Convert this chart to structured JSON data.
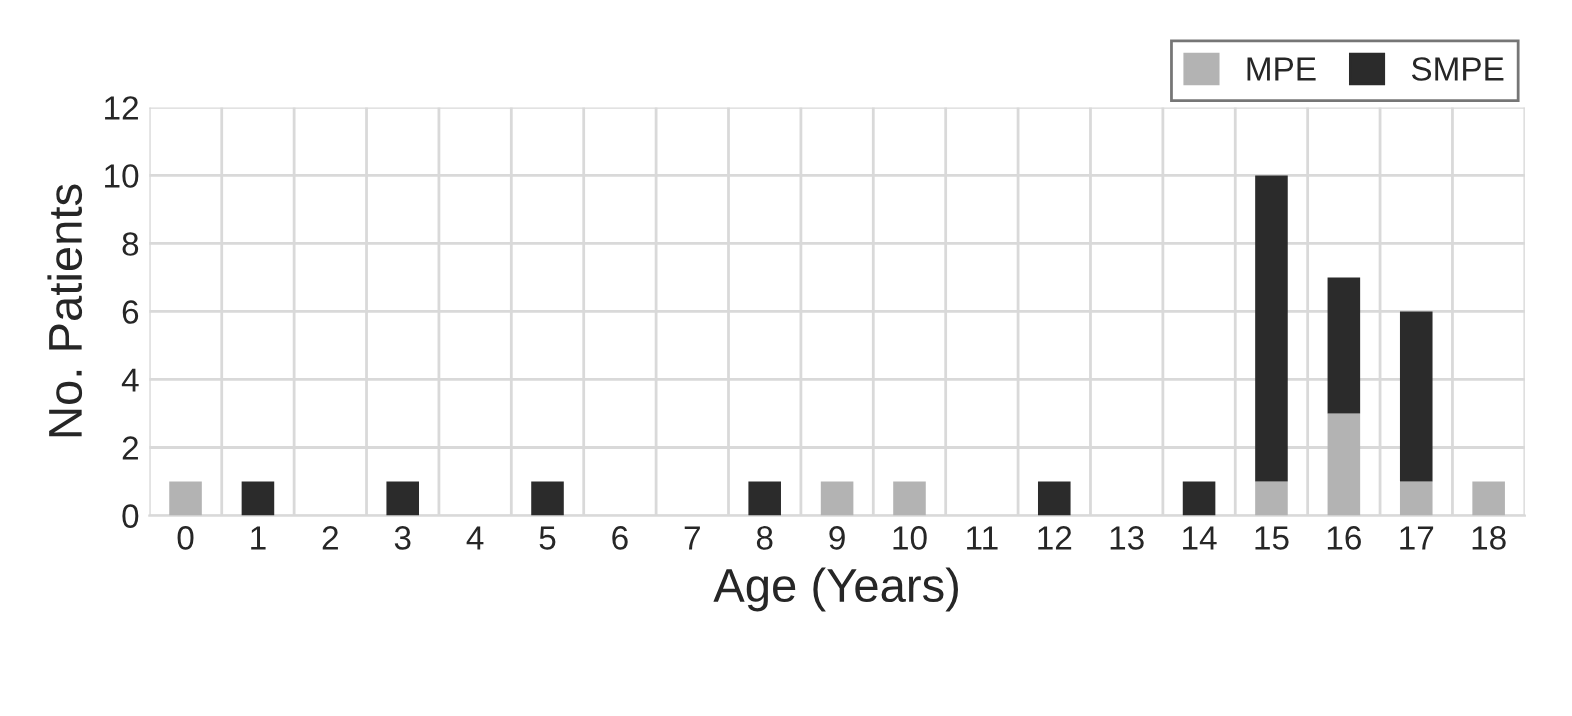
{
  "chart_data": {
    "type": "bar",
    "xlabel": "Age (Years)",
    "ylabel": "No. Patients",
    "categories": [
      "0",
      "1",
      "2",
      "3",
      "4",
      "5",
      "6",
      "7",
      "8",
      "9",
      "10",
      "11",
      "12",
      "13",
      "14",
      "15",
      "16",
      "17",
      "18"
    ],
    "series": [
      {
        "name": "MPE",
        "color": "#b3b3b3",
        "values": [
          1,
          0,
          0,
          0,
          0,
          0,
          0,
          0,
          0,
          1,
          1,
          0,
          0,
          0,
          0,
          1,
          3,
          1,
          1
        ]
      },
      {
        "name": "SMPE",
        "color": "#2b2b2b",
        "values": [
          0,
          1,
          0,
          1,
          0,
          1,
          0,
          0,
          1,
          0,
          0,
          0,
          1,
          0,
          1,
          9,
          4,
          5,
          0
        ]
      }
    ],
    "stacked": true,
    "ylim": [
      0,
      12
    ],
    "yticks": [
      0,
      2,
      4,
      6,
      8,
      10,
      12
    ],
    "grid": true,
    "legend": "top right"
  }
}
